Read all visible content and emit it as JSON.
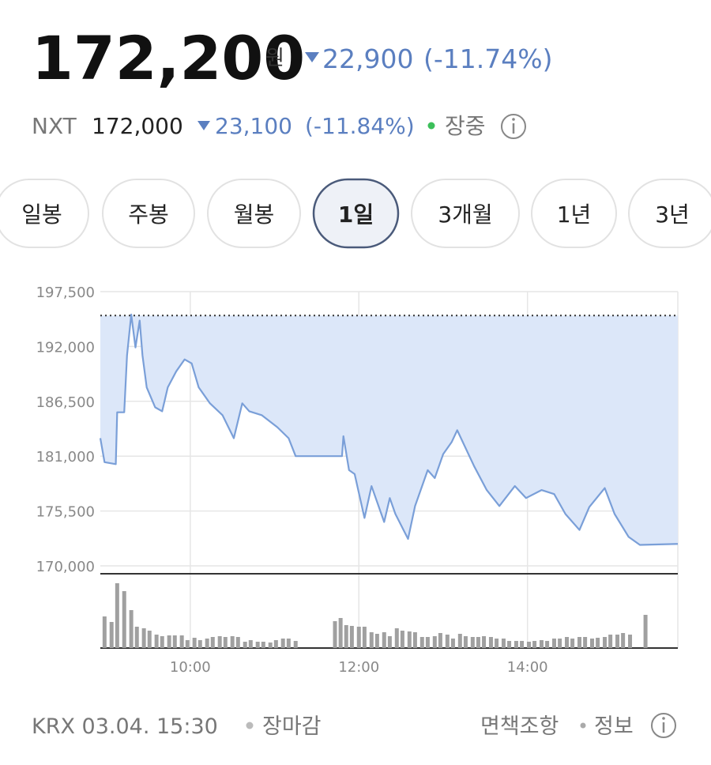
{
  "header": {
    "price": "172,200",
    "unit": "원",
    "change": "22,900",
    "change_pct": "(-11.74%)"
  },
  "nxt": {
    "label": "NXT",
    "price": "172,000",
    "change": "23,100",
    "change_pct": "(-11.84%)",
    "status": "장중"
  },
  "tabs": [
    {
      "label": "일봉"
    },
    {
      "label": "주봉"
    },
    {
      "label": "월봉"
    },
    {
      "label": "1일",
      "selected": true
    },
    {
      "label": "3개월"
    },
    {
      "label": "1년"
    },
    {
      "label": "3년"
    }
  ],
  "chart_data": {
    "type": "line",
    "color": "#7a9fd8",
    "fill_color": "#dce7f9",
    "x": [
      536,
      539,
      547,
      548,
      553,
      555,
      558,
      561,
      564,
      566,
      569,
      575,
      580,
      584,
      590,
      596,
      601,
      606,
      614,
      623,
      631,
      637,
      642,
      651,
      662,
      670,
      675,
      708,
      709,
      713,
      717,
      724,
      729,
      738,
      742,
      746,
      755,
      760,
      769,
      774,
      780,
      786,
      790,
      802,
      811,
      820,
      831,
      839,
      850,
      859,
      867,
      877,
      884,
      895,
      902,
      912,
      920,
      947
    ],
    "values": [
      182800,
      180400,
      180200,
      185400,
      185400,
      191100,
      195200,
      191900,
      194600,
      191100,
      187900,
      185900,
      185500,
      187900,
      189500,
      190700,
      190300,
      187900,
      186300,
      185100,
      182800,
      186300,
      185500,
      185100,
      183900,
      182800,
      181000,
      181000,
      183000,
      179600,
      179200,
      174800,
      178000,
      174400,
      176800,
      175200,
      172700,
      176000,
      179600,
      178800,
      181200,
      182400,
      183600,
      180000,
      177600,
      176000,
      178000,
      176800,
      177600,
      177200,
      175200,
      173600,
      175900,
      177800,
      175200,
      172900,
      172100,
      172200
    ],
    "reference_line": 195100,
    "xlim": [
      536,
      947
    ],
    "xticks": [
      {
        "value": 600,
        "label": "10:00"
      },
      {
        "value": 720,
        "label": "12:00"
      },
      {
        "value": 840,
        "label": "14:00"
      }
    ],
    "ylim": [
      170000,
      197500
    ],
    "yticks": [
      {
        "value": 170000,
        "label": "170,000"
      },
      {
        "value": 175500,
        "label": "175,500"
      },
      {
        "value": 181000,
        "label": "181,000"
      },
      {
        "value": 186500,
        "label": "186,500"
      },
      {
        "value": 192000,
        "label": "192,000"
      },
      {
        "value": 197500,
        "label": "197,500"
      }
    ],
    "grid": true,
    "volume": {
      "color": "#a0a0a0",
      "ylim": [
        0,
        94
      ],
      "x": [
        539,
        544,
        548,
        553,
        558,
        562,
        567,
        571,
        576,
        580,
        585,
        589,
        594,
        598,
        603,
        607,
        612,
        616,
        621,
        625,
        630,
        634,
        639,
        643,
        648,
        652,
        657,
        661,
        666,
        670,
        675,
        703,
        707,
        711,
        715,
        720,
        724,
        729,
        733,
        738,
        742,
        747,
        751,
        756,
        760,
        765,
        769,
        774,
        778,
        783,
        787,
        792,
        796,
        801,
        805,
        809,
        814,
        818,
        823,
        827,
        832,
        836,
        841,
        845,
        850,
        854,
        859,
        863,
        868,
        872,
        877,
        881,
        886,
        890,
        895,
        899,
        904,
        908,
        913,
        924
      ],
      "values": [
        40,
        33,
        82,
        72,
        48,
        27,
        25,
        22,
        17,
        15,
        16,
        16,
        16,
        10,
        13,
        10,
        12,
        14,
        15,
        14,
        15,
        14,
        8,
        10,
        8,
        8,
        7,
        10,
        12,
        12,
        9,
        34,
        38,
        29,
        28,
        27,
        27,
        20,
        18,
        20,
        15,
        25,
        22,
        21,
        20,
        14,
        14,
        15,
        19,
        17,
        12,
        18,
        15,
        14,
        14,
        15,
        14,
        12,
        12,
        9,
        9,
        9,
        8,
        9,
        10,
        9,
        12,
        12,
        14,
        12,
        14,
        14,
        12,
        13,
        14,
        17,
        17,
        19,
        17,
        42
      ]
    }
  },
  "footer": {
    "source": "KRX 03.04. 15:30",
    "status": "장마감",
    "disclaimer": "면책조항",
    "info": "정보"
  }
}
